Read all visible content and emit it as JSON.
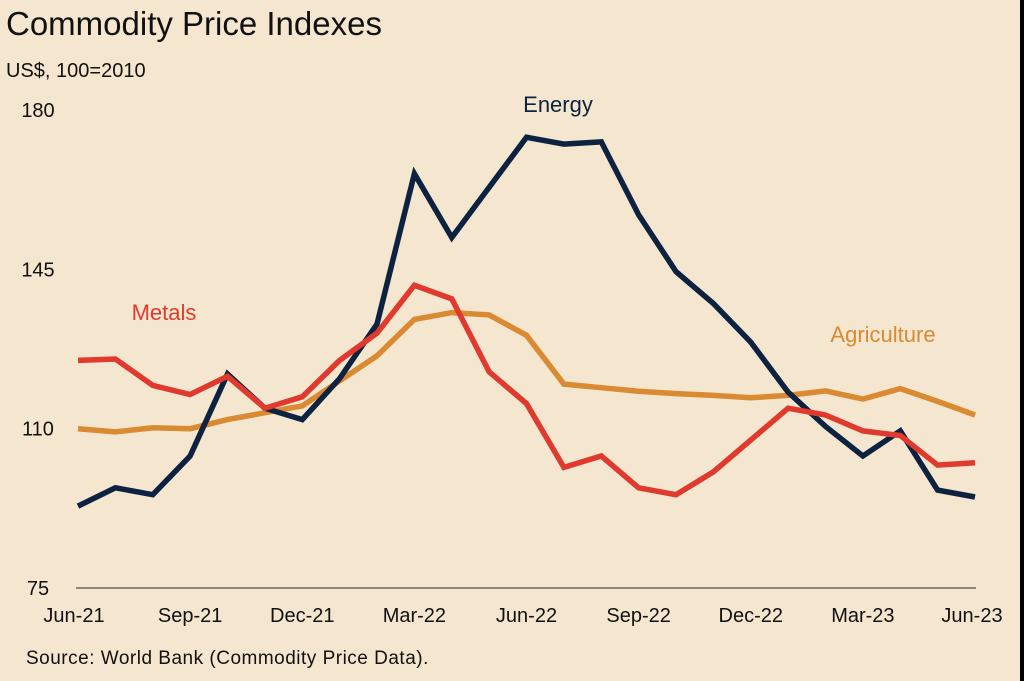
{
  "header": {
    "title": "Commodity Price Indexes",
    "subtitle": "US$, 100=2010"
  },
  "footer": {
    "source": "Source: World Bank (Commodity Price Data)."
  },
  "colors": {
    "background": "#F5E6CF",
    "energy": "#0D2240",
    "metals": "#E03A2F",
    "agriculture": "#D98A33",
    "axis": "#666666"
  },
  "chart_data": {
    "type": "line",
    "title": "Commodity Price Indexes",
    "subtitle": "US$, 100=2010",
    "xlabel": "",
    "ylabel": "",
    "ylim": [
      75,
      180
    ],
    "yticks": [
      75,
      110,
      145,
      180
    ],
    "grid": false,
    "x": [
      "Jun-21",
      "Jul-21",
      "Aug-21",
      "Sep-21",
      "Oct-21",
      "Nov-21",
      "Dec-21",
      "Jan-22",
      "Feb-22",
      "Mar-22",
      "Apr-22",
      "May-22",
      "Jun-22",
      "Jul-22",
      "Aug-22",
      "Sep-22",
      "Oct-22",
      "Nov-22",
      "Dec-22",
      "Jan-23",
      "Feb-23",
      "Mar-23",
      "Apr-23",
      "May-23",
      "Jun-23"
    ],
    "x_tick_labels": [
      "Jun-21",
      "Sep-21",
      "Dec-21",
      "Mar-22",
      "Jun-22",
      "Sep-22",
      "Dec-22",
      "Mar-23",
      "Jun-23"
    ],
    "series": [
      {
        "name": "Energy",
        "color": "#0D2240",
        "values": [
          93,
          97,
          95.5,
          104,
          122,
          114.5,
          112,
          121,
          133,
          166,
          152,
          163,
          174,
          172.5,
          173,
          157,
          144.5,
          137.5,
          129,
          118,
          110.5,
          104,
          109.5,
          96.5,
          95
        ]
      },
      {
        "name": "Metals",
        "color": "#E03A2F",
        "values": [
          125,
          125.3,
          119.5,
          117.5,
          121.5,
          114.5,
          117,
          125,
          131,
          141.5,
          138.5,
          122.5,
          115.5,
          101.5,
          104,
          97,
          95.5,
          100.5,
          107.5,
          114.5,
          113,
          109.5,
          108.5,
          102,
          102.5
        ]
      },
      {
        "name": "Agriculture",
        "color": "#D98A33",
        "values": [
          110,
          109.3,
          110.2,
          110,
          112,
          113.5,
          115,
          120.5,
          126,
          134,
          135.5,
          135,
          130.5,
          119.8,
          119,
          118.2,
          117.7,
          117.3,
          116.8,
          117.3,
          118.3,
          116.5,
          118.8,
          116,
          113
        ]
      }
    ],
    "annotations": [
      {
        "text": "Energy",
        "series": "Energy"
      },
      {
        "text": "Metals",
        "series": "Metals"
      },
      {
        "text": "Agriculture",
        "series": "Agriculture"
      }
    ],
    "legend": "inline labels"
  }
}
